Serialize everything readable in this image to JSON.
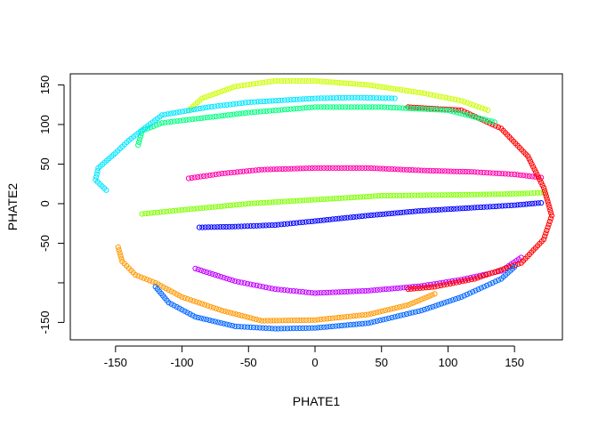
{
  "chart_data": {
    "type": "scatter",
    "title": "",
    "xlabel": "PHATE1",
    "ylabel": "PHATE2",
    "xlim": [
      -184,
      186
    ],
    "ylim": [
      -172,
      164
    ],
    "x_ticks": [
      -150,
      -100,
      -50,
      0,
      50,
      100,
      150
    ],
    "x_tick_labels": [
      "-150",
      "-100",
      "-50",
      "0",
      "50",
      "100",
      "150"
    ],
    "y_ticks": [
      -150,
      -50,
      0,
      50,
      100,
      150
    ],
    "y_tick_labels": [
      "-150",
      "-50",
      "0",
      "50",
      "100",
      "150"
    ],
    "y_minor_ticks": [
      -100
    ],
    "grid": false,
    "legend": "none",
    "marker": "open-circle",
    "series": [
      {
        "color": "#80FF00",
        "points": [
          [
            -130,
            -13
          ],
          [
            -100,
            -8
          ],
          [
            -50,
            0
          ],
          [
            0,
            5
          ],
          [
            50,
            10
          ],
          [
            100,
            11
          ],
          [
            140,
            12
          ],
          [
            160,
            13
          ],
          [
            172,
            14
          ]
        ]
      },
      {
        "color": "#0000FF",
        "points": [
          [
            -87,
            -30
          ],
          [
            -60,
            -29
          ],
          [
            -30,
            -27
          ],
          [
            0,
            -22
          ],
          [
            40,
            -15
          ],
          [
            80,
            -9
          ],
          [
            120,
            -5
          ],
          [
            150,
            -2
          ],
          [
            170,
            1
          ]
        ]
      },
      {
        "color": "#FF00AA",
        "points": [
          [
            -95,
            32
          ],
          [
            -70,
            38
          ],
          [
            -40,
            43
          ],
          [
            0,
            45
          ],
          [
            40,
            45
          ],
          [
            80,
            42
          ],
          [
            120,
            40
          ],
          [
            150,
            37
          ],
          [
            170,
            33
          ]
        ]
      },
      {
        "color": "#BF00FF",
        "points": [
          [
            -90,
            -82
          ],
          [
            -60,
            -98
          ],
          [
            -30,
            -108
          ],
          [
            0,
            -113
          ],
          [
            40,
            -110
          ],
          [
            80,
            -104
          ],
          [
            110,
            -96
          ],
          [
            140,
            -85
          ],
          [
            155,
            -68
          ]
        ]
      },
      {
        "color": "#FF0000",
        "points": [
          [
            70,
            122
          ],
          [
            110,
            118
          ],
          [
            140,
            95
          ],
          [
            160,
            60
          ],
          [
            172,
            20
          ],
          [
            178,
            -15
          ],
          [
            172,
            -45
          ],
          [
            155,
            -75
          ],
          [
            120,
            -95
          ],
          [
            90,
            -105
          ],
          [
            70,
            -108
          ]
        ]
      },
      {
        "color": "#CCFF00",
        "points": [
          [
            -95,
            118
          ],
          [
            -85,
            133
          ],
          [
            -60,
            148
          ],
          [
            -30,
            155
          ],
          [
            0,
            155
          ],
          [
            40,
            150
          ],
          [
            80,
            140
          ],
          [
            110,
            130
          ],
          [
            130,
            118
          ]
        ]
      },
      {
        "color": "#00FF80",
        "points": [
          [
            -133,
            74
          ],
          [
            -130,
            92
          ],
          [
            -115,
            102
          ],
          [
            -90,
            107
          ],
          [
            -50,
            115
          ],
          [
            0,
            122
          ],
          [
            50,
            122
          ],
          [
            100,
            118
          ],
          [
            135,
            103
          ]
        ]
      },
      {
        "color": "#00E5FF",
        "points": [
          [
            -157,
            17
          ],
          [
            -165,
            30
          ],
          [
            -163,
            45
          ],
          [
            -150,
            64
          ],
          [
            -140,
            80
          ],
          [
            -115,
            112
          ],
          [
            -80,
            122
          ],
          [
            -50,
            128
          ],
          [
            0,
            133
          ],
          [
            30,
            134
          ],
          [
            60,
            133
          ]
        ]
      },
      {
        "color": "#FF9900",
        "points": [
          [
            -148,
            -55
          ],
          [
            -145,
            -73
          ],
          [
            -135,
            -90
          ],
          [
            -120,
            -100
          ],
          [
            -100,
            -118
          ],
          [
            -70,
            -135
          ],
          [
            -40,
            -148
          ],
          [
            0,
            -147
          ],
          [
            40,
            -140
          ],
          [
            70,
            -128
          ],
          [
            90,
            -114
          ]
        ]
      },
      {
        "color": "#0066FF",
        "points": [
          [
            -120,
            -105
          ],
          [
            -110,
            -125
          ],
          [
            -90,
            -143
          ],
          [
            -60,
            -155
          ],
          [
            -30,
            -158
          ],
          [
            0,
            -157
          ],
          [
            40,
            -151
          ],
          [
            80,
            -135
          ],
          [
            110,
            -118
          ],
          [
            140,
            -95
          ],
          [
            150,
            -80
          ]
        ]
      }
    ]
  }
}
